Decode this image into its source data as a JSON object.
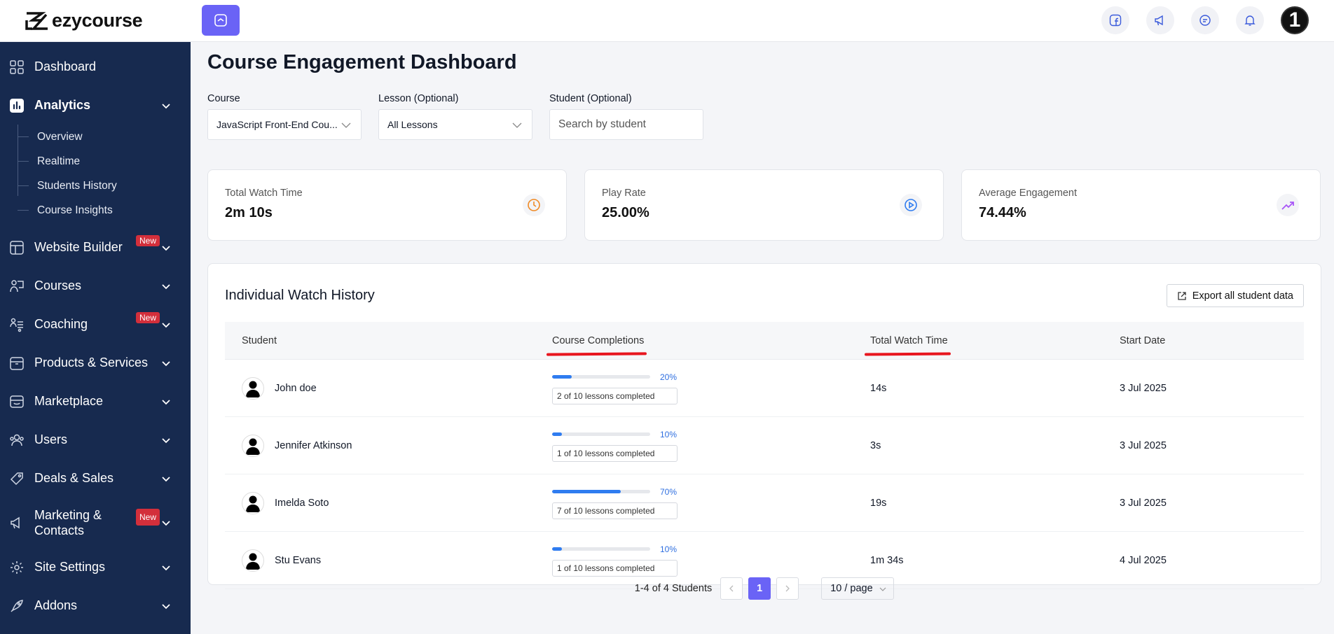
{
  "brand": {
    "name": "ezycourse"
  },
  "sidebar": {
    "items": [
      {
        "label": "Dashboard",
        "icon": "grid-icon"
      },
      {
        "label": "Analytics",
        "icon": "bar-chart-icon",
        "active": true,
        "children": [
          "Overview",
          "Realtime",
          "Students History",
          "Course Insights"
        ]
      },
      {
        "label": "Website Builder",
        "icon": "layout-icon",
        "badge": "New"
      },
      {
        "label": "Courses",
        "icon": "teacher-icon"
      },
      {
        "label": "Coaching",
        "icon": "people-settings-icon",
        "badge": "New"
      },
      {
        "label": "Products & Services",
        "icon": "box-icon"
      },
      {
        "label": "Marketplace",
        "icon": "store-icon"
      },
      {
        "label": "Users",
        "icon": "users-icon"
      },
      {
        "label": "Deals & Sales",
        "icon": "tag-icon"
      },
      {
        "label": "Marketing & Contacts",
        "icon": "megaphone-icon",
        "badge": "New"
      },
      {
        "label": "Site Settings",
        "icon": "gear-icon"
      },
      {
        "label": "Addons",
        "icon": "rocket-icon"
      }
    ]
  },
  "topbar": {
    "icons": [
      "facebook-icon",
      "announcement-icon",
      "chat-icon",
      "bell-icon"
    ],
    "avatar_text": "1"
  },
  "page": {
    "title": "Course Engagement Dashboard"
  },
  "filters": {
    "course": {
      "label": "Course",
      "value": "JavaScript Front-End Cou..."
    },
    "lesson": {
      "label": "Lesson (Optional)",
      "value": "All Lessons"
    },
    "student": {
      "label": "Student (Optional)",
      "placeholder": "Search by student"
    }
  },
  "stats": [
    {
      "label": "Total Watch Time",
      "value": "2m 10s",
      "icon": "clock-icon",
      "color": "#f08a24"
    },
    {
      "label": "Play Rate",
      "value": "25.00%",
      "icon": "play-icon",
      "color": "#2f7cf0"
    },
    {
      "label": "Average Engagement",
      "value": "74.44%",
      "icon": "trend-up-icon",
      "color": "#a855f7"
    }
  ],
  "history": {
    "title": "Individual Watch History",
    "export_label": "Export all student data",
    "columns": {
      "student": "Student",
      "completions": "Course Completions",
      "watch": "Total Watch Time",
      "start": "Start Date"
    },
    "rows": [
      {
        "name": "John doe",
        "pct": 20,
        "pct_label": "20%",
        "lessons": "2 of 10 lessons completed",
        "watch": "14s",
        "start": "3 Jul 2025"
      },
      {
        "name": "Jennifer Atkinson",
        "pct": 10,
        "pct_label": "10%",
        "lessons": "1 of 10 lessons completed",
        "watch": "3s",
        "start": "3 Jul 2025"
      },
      {
        "name": "Imelda Soto",
        "pct": 70,
        "pct_label": "70%",
        "lessons": "7 of 10 lessons completed",
        "watch": "19s",
        "start": "3 Jul 2025"
      },
      {
        "name": "Stu Evans",
        "pct": 10,
        "pct_label": "10%",
        "lessons": "1 of 10 lessons completed",
        "watch": "1m 34s",
        "start": "4 Jul 2025"
      }
    ],
    "pagination": {
      "info": "1-4 of 4 Students",
      "current": "1",
      "page_size": "10 / page"
    }
  }
}
